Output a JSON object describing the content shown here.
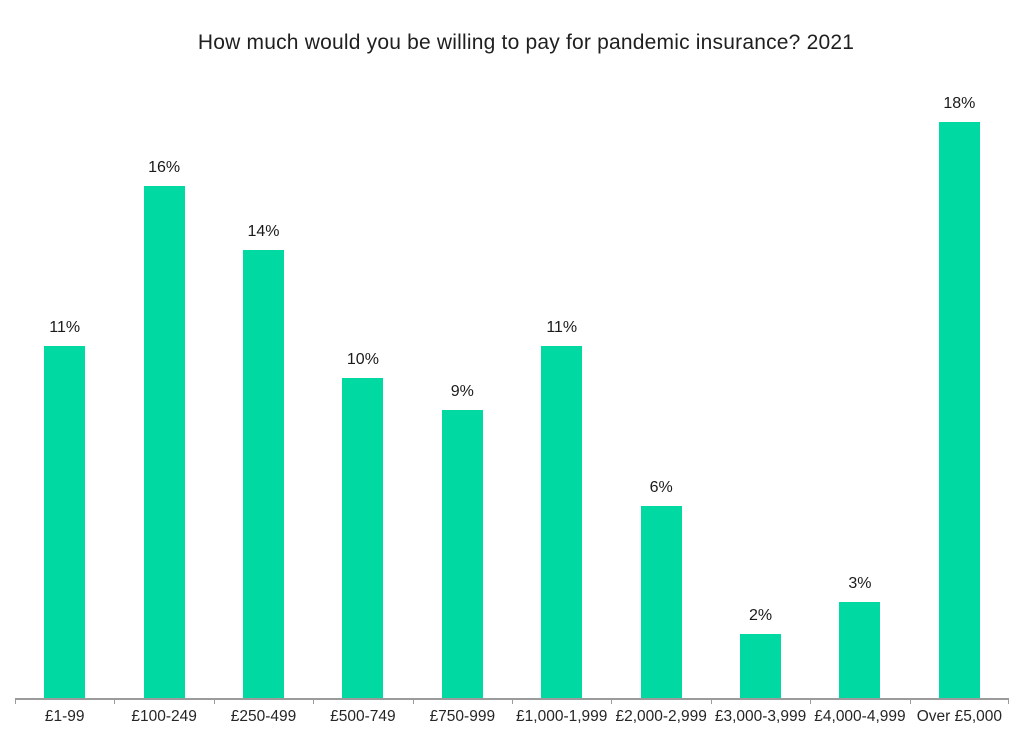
{
  "page": {
    "background": "#ffffff"
  },
  "chart_data": {
    "type": "bar",
    "title": "How much would you be willing to pay for pandemic insurance? 2021",
    "categories": [
      "£1-99",
      "£100-249",
      "£250-499",
      "£500-749",
      "£750-999",
      "£1,000-1,999",
      "£2,000-2,999",
      "£3,000-3,999",
      "£4,000-4,999",
      "Over £5,000"
    ],
    "values": [
      11,
      16,
      14,
      10,
      9,
      11,
      6,
      2,
      3,
      18
    ],
    "data_labels": [
      "11%",
      "16%",
      "14%",
      "10%",
      "9%",
      "11%",
      "6%",
      "2%",
      "3%",
      "18%"
    ],
    "xlabel": "",
    "ylabel": "",
    "ylim": [
      0,
      19
    ],
    "grid": false,
    "legend": false,
    "data_labels_visible": true,
    "bar_color": "#00D9A1",
    "axis_color": "#9B9B9B",
    "label_color": "#262626",
    "title_color": "#1f1f1f"
  }
}
